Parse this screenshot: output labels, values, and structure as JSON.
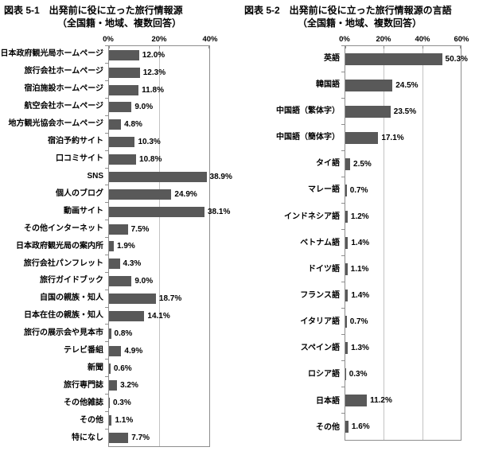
{
  "page": {
    "background": "#ffffff"
  },
  "chart_data": [
    {
      "type": "bar",
      "orientation": "horizontal",
      "title_line1": "図表 5-1　出発前に役に立った旅行情報源",
      "title_line2": "（全国籍・地域、複数回答）",
      "bar_color": "#595959",
      "gridline_color": "#c3c3c3",
      "xlim": [
        0,
        40
      ],
      "tick_values": [
        0,
        20,
        40
      ],
      "tick_labels": [
        "0%",
        "20%",
        "40%"
      ],
      "categories": [
        "日本政府観光局ホームページ",
        "旅行会社ホームページ",
        "宿泊施設ホームページ",
        "航空会社ホームページ",
        "地方観光協会ホームページ",
        "宿泊予約サイト",
        "口コミサイト",
        "SNS",
        "個人のブログ",
        "動画サイト",
        "その他インターネット",
        "日本政府観光局の案内所",
        "旅行会社パンフレット",
        "旅行ガイドブック",
        "自国の親族・知人",
        "日本在住の親族・知人",
        "旅行の展示会や見本市",
        "テレビ番組",
        "新聞",
        "旅行専門誌",
        "その他雑誌",
        "その他",
        "特になし"
      ],
      "values": [
        12.0,
        12.3,
        11.8,
        9.0,
        4.8,
        10.3,
        10.8,
        38.9,
        24.9,
        38.1,
        7.5,
        1.9,
        4.3,
        9.0,
        18.7,
        14.1,
        0.8,
        4.9,
        0.6,
        3.2,
        0.3,
        1.1,
        7.7
      ],
      "value_labels": [
        "12.0%",
        "12.3%",
        "11.8%",
        "9.0%",
        "4.8%",
        "10.3%",
        "10.8%",
        "38.9%",
        "24.9%",
        "38.1%",
        "7.5%",
        "1.9%",
        "4.3%",
        "9.0%",
        "18.7%",
        "14.1%",
        "0.8%",
        "4.9%",
        "0.6%",
        "3.2%",
        "0.3%",
        "1.1%",
        "7.7%"
      ]
    },
    {
      "type": "bar",
      "orientation": "horizontal",
      "title_line1": "図表 5-2　出発前に役に立った旅行情報源の言語",
      "title_line2": "（全国籍・地域、複数回答）",
      "bar_color": "#595959",
      "gridline_color": "#c3c3c3",
      "xlim": [
        0,
        60
      ],
      "tick_values": [
        0,
        20,
        40,
        60
      ],
      "tick_labels": [
        "0%",
        "20%",
        "40%",
        "60%"
      ],
      "categories": [
        "英語",
        "韓国語",
        "中国語（繁体字）",
        "中国語（簡体字）",
        "タイ語",
        "マレー語",
        "インドネシア語",
        "ベトナム語",
        "ドイツ語",
        "フランス語",
        "イタリア語",
        "スペイン語",
        "ロシア語",
        "日本語",
        "その他"
      ],
      "values": [
        50.3,
        24.5,
        23.5,
        17.1,
        2.5,
        0.7,
        1.2,
        1.4,
        1.1,
        1.4,
        0.7,
        1.3,
        0.3,
        11.2,
        1.6
      ],
      "value_labels": [
        "50.3%",
        "24.5%",
        "23.5%",
        "17.1%",
        "2.5%",
        "0.7%",
        "1.2%",
        "1.4%",
        "1.1%",
        "1.4%",
        "0.7%",
        "1.3%",
        "0.3%",
        "11.2%",
        "1.6%"
      ]
    }
  ]
}
